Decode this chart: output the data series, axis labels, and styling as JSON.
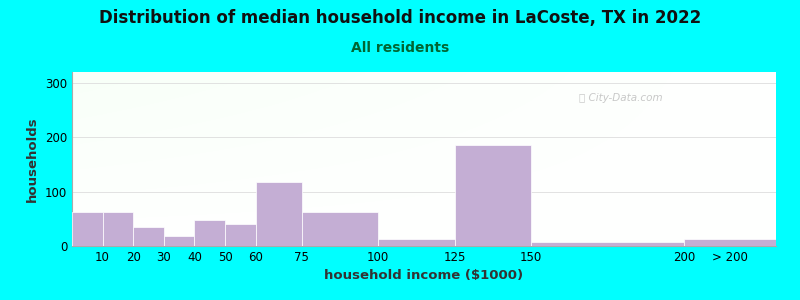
{
  "title": "Distribution of median household income in LaCoste, TX in 2022",
  "subtitle": "All residents",
  "xlabel": "household income ($1000)",
  "ylabel": "households",
  "background_color": "#00FFFF",
  "bar_color": "#C4AED4",
  "bar_edgecolor": "#FFFFFF",
  "ylim": [
    0,
    320
  ],
  "yticks": [
    0,
    100,
    200,
    300
  ],
  "categories": [
    "10",
    "20",
    "30",
    "40",
    "50",
    "60",
    "75",
    "100",
    "125",
    "150",
    "200",
    "> 200"
  ],
  "values": [
    62,
    62,
    35,
    18,
    47,
    40,
    118,
    62,
    13,
    185,
    7,
    13
  ],
  "left_edges": [
    0,
    10,
    20,
    30,
    40,
    50,
    60,
    75,
    100,
    125,
    150,
    200
  ],
  "right_edges": [
    10,
    20,
    30,
    40,
    50,
    60,
    75,
    100,
    125,
    150,
    200,
    230
  ],
  "title_fontsize": 12,
  "subtitle_fontsize": 10,
  "label_fontsize": 9.5,
  "tick_fontsize": 8.5
}
